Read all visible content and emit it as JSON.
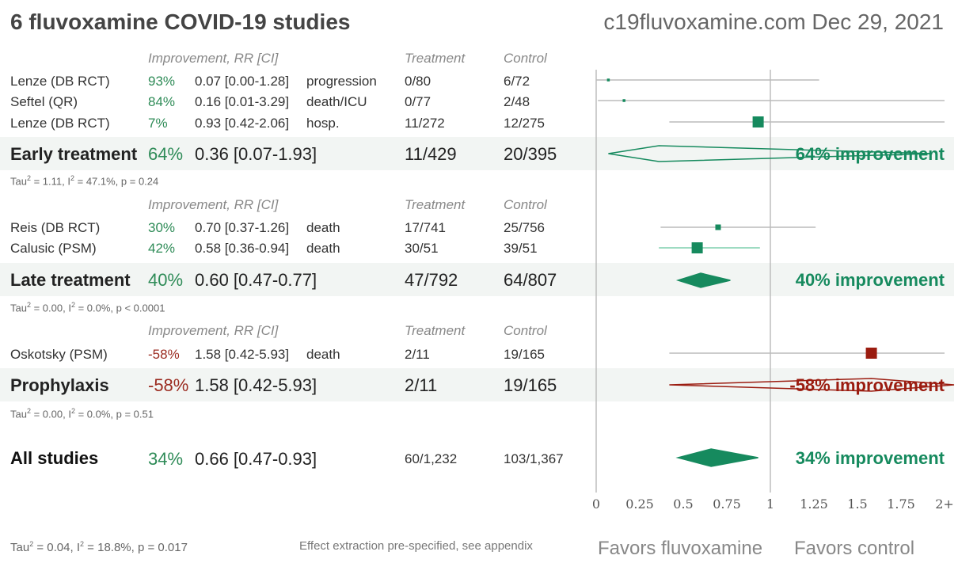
{
  "header": {
    "title": "6 fluvoxamine COVID-19 studies",
    "source": "c19fluvoxamine.com Dec 29, 2021"
  },
  "columns": {
    "improvement": "Improvement, RR [CI]",
    "treatment": "Treatment",
    "control": "Control"
  },
  "groups": [
    {
      "name": "Early treatment",
      "studies": [
        {
          "name": "Lenze (DB RCT)",
          "improvement": "93%",
          "rr_ci": "0.07 [0.00-1.28]",
          "outcome": "progression",
          "treatment": "0/80",
          "control": "6/72"
        },
        {
          "name": "Seftel (QR)",
          "improvement": "84%",
          "rr_ci": "0.16 [0.01-3.29]",
          "outcome": "death/ICU",
          "treatment": "0/77",
          "control": "2/48"
        },
        {
          "name": "Lenze (DB RCT)",
          "improvement": "7%",
          "rr_ci": "0.93 [0.42-2.06]",
          "outcome": "hosp.",
          "treatment": "11/272",
          "control": "12/275"
        }
      ],
      "summary": {
        "improvement": "64%",
        "rr_ci": "0.36 [0.07-1.93]",
        "treatment": "11/429",
        "control": "20/395",
        "label": "64% improvement"
      },
      "stats": {
        "tau_prefix": "Tau",
        "sup": "2",
        "tau_value": " = 1.11, I",
        "i_value": " = 47.1%, p = 0.24"
      }
    },
    {
      "name": "Late treatment",
      "studies": [
        {
          "name": "Reis (DB RCT)",
          "improvement": "30%",
          "rr_ci": "0.70 [0.37-1.26]",
          "outcome": "death",
          "treatment": "17/741",
          "control": "25/756"
        },
        {
          "name": "Calusic (PSM)",
          "improvement": "42%",
          "rr_ci": "0.58 [0.36-0.94]",
          "outcome": "death",
          "treatment": "30/51",
          "control": "39/51"
        }
      ],
      "summary": {
        "improvement": "40%",
        "rr_ci": "0.60 [0.47-0.77]",
        "treatment": "47/792",
        "control": "64/807",
        "label": "40% improvement"
      },
      "stats": {
        "tau_prefix": "Tau",
        "sup": "2",
        "tau_value": " = 0.00, I",
        "i_value": " = 0.0%, p < 0.0001"
      }
    },
    {
      "name": "Prophylaxis",
      "studies": [
        {
          "name": "Oskotsky (PSM)",
          "improvement": "-58%",
          "rr_ci": "1.58 [0.42-5.93]",
          "outcome": "death",
          "treatment": "2/11",
          "control": "19/165"
        }
      ],
      "summary": {
        "improvement": "-58%",
        "rr_ci": "1.58 [0.42-5.93]",
        "treatment": "2/11",
        "control": "19/165",
        "label": "-58% improvement"
      },
      "stats": {
        "tau_prefix": "Tau",
        "sup": "2",
        "tau_value": " = 0.00, I",
        "i_value": " = 0.0%, p = 0.51"
      }
    }
  ],
  "all": {
    "name": "All studies",
    "improvement": "34%",
    "rr_ci": "0.66 [0.47-0.93]",
    "treatment": "60/1,232",
    "control": "103/1,367",
    "label": "34% improvement",
    "stats": {
      "tau_prefix": "Tau",
      "sup": "2",
      "tau_value": " = 0.04, I",
      "i_value": " = 18.8%, p = 0.017"
    }
  },
  "footer": {
    "effect_note": "Effect extraction pre-specified, see appendix",
    "favors_left": "Favors fluvoxamine",
    "favors_right": "Favors control"
  },
  "colors": {
    "positive": "#168a5e",
    "negative": "#9b1c10",
    "whisker": "#bbbbbb",
    "whisker_sig": "#7fcfae"
  },
  "chart_data": {
    "type": "forest",
    "xlabel_left": "Favors fluvoxamine",
    "xlabel_right": "Favors control",
    "xlim": [
      0,
      2
    ],
    "x_ticks": [
      {
        "value": 0,
        "label": "0"
      },
      {
        "value": 0.25,
        "label": "0.25"
      },
      {
        "value": 0.5,
        "label": "0.5"
      },
      {
        "value": 0.75,
        "label": "0.75"
      },
      {
        "value": 1,
        "label": "1"
      },
      {
        "value": 1.25,
        "label": "1.25"
      },
      {
        "value": 1.5,
        "label": "1.5"
      },
      {
        "value": 1.75,
        "label": "1.75"
      },
      {
        "value": 2,
        "label": "2+"
      }
    ],
    "reference_line": 1,
    "studies": [
      {
        "name": "Lenze (DB RCT)",
        "group": "Early treatment",
        "rr": 0.07,
        "lo": 0.0,
        "hi": 1.28,
        "weight": 1,
        "significant": false
      },
      {
        "name": "Seftel (QR)",
        "group": "Early treatment",
        "rr": 0.16,
        "lo": 0.01,
        "hi": 3.29,
        "weight": 1,
        "significant": false
      },
      {
        "name": "Lenze (DB RCT)",
        "group": "Early treatment",
        "rr": 0.93,
        "lo": 0.42,
        "hi": 2.06,
        "weight": 4,
        "significant": false
      },
      {
        "name": "Reis (DB RCT)",
        "group": "Late treatment",
        "rr": 0.7,
        "lo": 0.37,
        "hi": 1.26,
        "weight": 2,
        "significant": false
      },
      {
        "name": "Calusic (PSM)",
        "group": "Late treatment",
        "rr": 0.58,
        "lo": 0.36,
        "hi": 0.94,
        "weight": 4,
        "significant": true
      },
      {
        "name": "Oskotsky (PSM)",
        "group": "Prophylaxis",
        "rr": 1.58,
        "lo": 0.42,
        "hi": 5.93,
        "weight": 4,
        "significant": false
      }
    ],
    "summaries": [
      {
        "name": "Early treatment",
        "rr": 0.36,
        "lo": 0.07,
        "hi": 1.93
      },
      {
        "name": "Late treatment",
        "rr": 0.6,
        "lo": 0.47,
        "hi": 0.77
      },
      {
        "name": "Prophylaxis",
        "rr": 1.58,
        "lo": 0.42,
        "hi": 5.93
      },
      {
        "name": "All studies",
        "rr": 0.66,
        "lo": 0.47,
        "hi": 0.93
      }
    ]
  }
}
